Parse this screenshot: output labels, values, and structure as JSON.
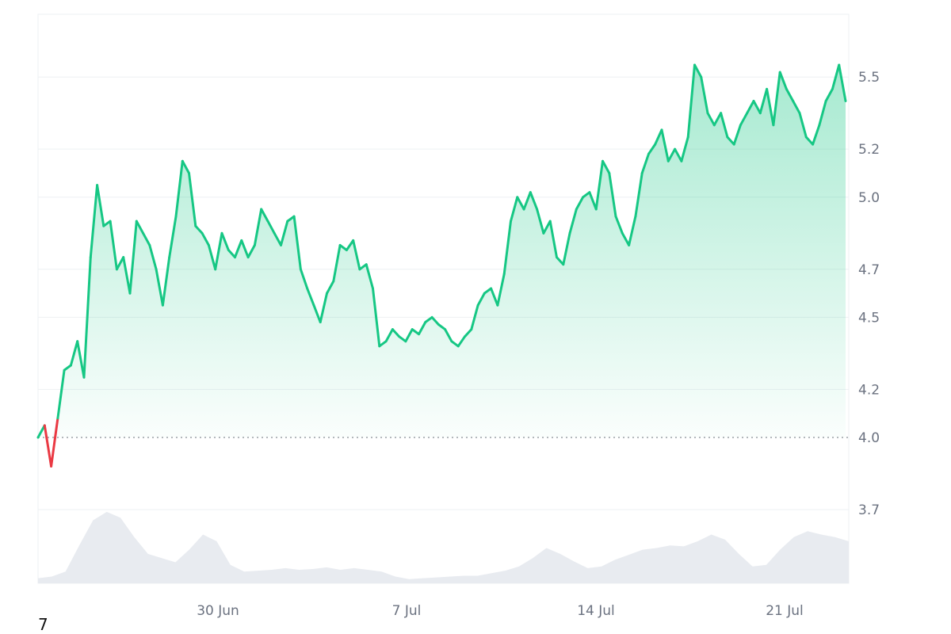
{
  "corner_label": "7",
  "chart_data": {
    "type": "area",
    "title": "",
    "xlabel": "",
    "ylabel": "",
    "x_ticks": [
      "30 Jun",
      "7 Jul",
      "14 Jul",
      "21 Jul"
    ],
    "y_ticks": [
      3.7,
      4.0,
      4.2,
      4.5,
      4.7,
      5.0,
      5.2,
      5.5
    ],
    "ylim": [
      3.5,
      5.8
    ],
    "baseline": 4.0,
    "grid": true,
    "colors": {
      "up": "#16c784",
      "down": "#ea3943",
      "volume": "#e8ebf0",
      "grid": "#eef0f3",
      "axis_text": "#6b7280"
    },
    "series": [
      {
        "values": [
          4.0,
          4.05,
          3.88,
          4.08,
          4.28,
          4.3,
          4.4,
          4.25,
          4.75,
          5.05,
          4.88,
          4.9,
          4.7,
          4.75,
          4.6,
          4.9,
          4.85,
          4.8,
          4.7,
          4.55,
          4.75,
          4.92,
          5.15,
          5.1,
          4.88,
          4.85,
          4.8,
          4.7,
          4.85,
          4.78,
          4.75,
          4.82,
          4.75,
          4.8,
          4.95,
          4.9,
          4.85,
          4.8,
          4.9,
          4.92,
          4.7,
          4.62,
          4.55,
          4.48,
          4.6,
          4.65,
          4.8,
          4.78,
          4.82,
          4.7,
          4.72,
          4.62,
          4.38,
          4.4,
          4.45,
          4.42,
          4.4,
          4.45,
          4.43,
          4.48,
          4.5,
          4.47,
          4.45,
          4.4,
          4.38,
          4.42,
          4.45,
          4.55,
          4.6,
          4.62,
          4.55,
          4.68,
          4.9,
          5.0,
          4.95,
          5.02,
          4.95,
          4.85,
          4.9,
          4.75,
          4.72,
          4.85,
          4.95,
          5.0,
          5.02,
          4.95,
          5.15,
          5.1,
          4.92,
          4.85,
          4.8,
          4.92,
          5.1,
          5.18,
          5.22,
          5.28,
          5.15,
          5.2,
          5.15,
          5.25,
          5.55,
          5.5,
          5.35,
          5.3,
          5.35,
          5.25,
          5.22,
          5.3,
          5.35,
          5.4,
          5.35,
          5.45,
          5.3,
          5.52,
          5.45,
          5.4,
          5.35,
          5.25,
          5.22,
          5.3,
          5.4,
          5.45,
          5.55,
          5.4
        ]
      }
    ],
    "volume": [
      0.06,
      0.08,
      0.14,
      0.45,
      0.75,
      0.85,
      0.78,
      0.55,
      0.35,
      0.3,
      0.25,
      0.4,
      0.58,
      0.5,
      0.22,
      0.14,
      0.15,
      0.16,
      0.18,
      0.16,
      0.17,
      0.19,
      0.16,
      0.18,
      0.16,
      0.14,
      0.08,
      0.05,
      0.06,
      0.07,
      0.08,
      0.09,
      0.09,
      0.12,
      0.15,
      0.2,
      0.3,
      0.42,
      0.35,
      0.26,
      0.18,
      0.2,
      0.28,
      0.34,
      0.4,
      0.42,
      0.45,
      0.44,
      0.5,
      0.58,
      0.52,
      0.35,
      0.2,
      0.22,
      0.4,
      0.55,
      0.62,
      0.58,
      0.55,
      0.5
    ]
  }
}
